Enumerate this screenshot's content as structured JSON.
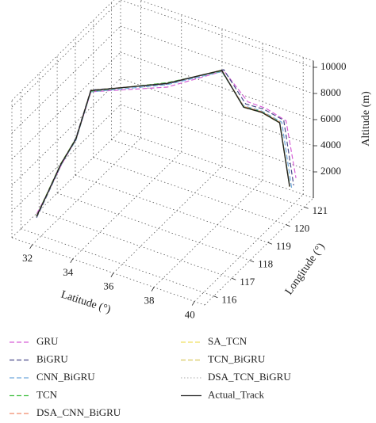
{
  "chart_data": {
    "type": "line3d",
    "x_label": "Latitude (°)",
    "y_label": "Longitude (°)",
    "z_label": "Altitude (m)",
    "xlim": [
      31,
      40.5
    ],
    "ylim": [
      115.5,
      121.5
    ],
    "zlim": [
      0,
      10500
    ],
    "xticks": [
      32,
      34,
      36,
      38,
      40
    ],
    "yticks": [
      116,
      117,
      118,
      119,
      120,
      121
    ],
    "zticks": [
      2000,
      4000,
      6000,
      8000,
      10000
    ],
    "grid": true,
    "series": [
      {
        "name": "GRU",
        "color": "#d65fd6",
        "line_style": "dashed",
        "x": [
          31.6,
          31.8,
          32.0,
          32.2,
          32.4,
          34.9,
          36.9,
          37.9,
          38.7,
          39.6,
          40.0
        ],
        "y": [
          116.2,
          116.6,
          117.1,
          117.7,
          118.3,
          119.7,
          120.6,
          120.8,
          120.9,
          121.0,
          121.1
        ],
        "z": [
          1200,
          2400,
          3900,
          5200,
          8100,
          7900,
          9000,
          6900,
          6700,
          6100,
          1800
        ]
      },
      {
        "name": "BiGRU",
        "color": "#4a4a8a",
        "line_style": "dashed",
        "x": [
          31.5,
          31.7,
          31.9,
          32.1,
          32.3,
          34.8,
          36.8,
          37.7,
          38.5,
          39.4,
          39.8
        ],
        "y": [
          116.3,
          116.7,
          117.2,
          117.8,
          118.4,
          119.8,
          120.7,
          120.9,
          121.0,
          121.1,
          121.2
        ],
        "z": [
          700,
          2100,
          3700,
          5100,
          8050,
          7950,
          8900,
          6500,
          6400,
          5900,
          1000
        ]
      },
      {
        "name": "CNN_BiGRU",
        "color": "#6fa8dc",
        "line_style": "dashed",
        "x": [
          31.5,
          31.7,
          31.9,
          32.1,
          32.3,
          34.8,
          36.7,
          37.6,
          38.4,
          39.3,
          39.7
        ],
        "y": [
          116.3,
          116.7,
          117.2,
          117.8,
          118.4,
          119.8,
          120.7,
          120.9,
          121.0,
          121.1,
          121.2
        ],
        "z": [
          750,
          2150,
          3750,
          4900,
          7900,
          7900,
          8700,
          6300,
          6200,
          5700,
          700
        ]
      },
      {
        "name": "TCN",
        "color": "#3fbf3f",
        "line_style": "dashed",
        "x": [
          31.5,
          31.7,
          31.9,
          32.1,
          32.3,
          34.8,
          36.7,
          37.6,
          38.4,
          39.2,
          39.6
        ],
        "y": [
          116.3,
          116.7,
          117.2,
          117.8,
          118.4,
          119.8,
          120.7,
          120.9,
          121.0,
          121.1,
          121.2
        ],
        "z": [
          850,
          2250,
          3850,
          5050,
          7950,
          8050,
          8750,
          6250,
          6150,
          5650,
          900
        ]
      },
      {
        "name": "DSA_CNN_BiGRU",
        "color": "#f08a6a",
        "line_style": "dashed",
        "x": [
          31.5,
          31.7,
          31.9,
          32.1,
          32.3,
          34.8,
          36.7,
          37.6,
          38.4,
          39.2,
          39.6
        ],
        "y": [
          116.3,
          116.7,
          117.2,
          117.8,
          118.4,
          119.8,
          120.7,
          120.9,
          121.0,
          121.1,
          121.2
        ],
        "z": [
          800,
          2200,
          3800,
          5000,
          8000,
          8000,
          8800,
          6250,
          6150,
          5650,
          850
        ]
      },
      {
        "name": "SA_TCN",
        "color": "#f0e060",
        "line_style": "dashed",
        "x": [
          31.5,
          31.7,
          31.9,
          32.1,
          32.3,
          34.8,
          36.7,
          37.6,
          38.4,
          39.2,
          39.6
        ],
        "y": [
          116.3,
          116.7,
          117.2,
          117.8,
          118.4,
          119.8,
          120.7,
          120.9,
          121.0,
          121.1,
          121.2
        ],
        "z": [
          820,
          2180,
          3820,
          5020,
          8020,
          8000,
          8820,
          6220,
          6120,
          5620,
          820
        ]
      },
      {
        "name": "TCN_BiGRU",
        "color": "#d8c860",
        "line_style": "dashed",
        "x": [
          31.5,
          31.7,
          31.9,
          32.1,
          32.3,
          34.8,
          36.7,
          37.6,
          38.4,
          39.2,
          39.6
        ],
        "y": [
          116.3,
          116.7,
          117.2,
          117.8,
          118.4,
          119.8,
          120.7,
          120.9,
          121.0,
          121.1,
          121.2
        ],
        "z": [
          780,
          2230,
          3780,
          4980,
          7980,
          8010,
          8780,
          6180,
          6080,
          5580,
          780
        ]
      },
      {
        "name": "DSA_TCN_BiGRU",
        "color": "#bbbbbb",
        "line_style": "dotted",
        "x": [
          31.5,
          31.7,
          31.9,
          32.1,
          32.3,
          34.8,
          36.7,
          37.6,
          38.4,
          39.2,
          39.6
        ],
        "y": [
          116.3,
          116.7,
          117.2,
          117.8,
          118.4,
          119.8,
          120.7,
          120.9,
          121.0,
          121.1,
          121.2
        ],
        "z": [
          800,
          2200,
          3800,
          5000,
          8000,
          8000,
          8800,
          6200,
          6100,
          5600,
          800
        ]
      },
      {
        "name": "Actual_Track",
        "color": "#222222",
        "line_style": "solid",
        "x": [
          31.5,
          31.7,
          31.9,
          32.1,
          32.3,
          34.8,
          36.7,
          37.6,
          38.4,
          39.2,
          39.6
        ],
        "y": [
          116.3,
          116.7,
          117.2,
          117.8,
          118.4,
          119.8,
          120.7,
          120.9,
          121.0,
          121.1,
          121.2
        ],
        "z": [
          800,
          2200,
          3800,
          5000,
          8000,
          8000,
          8800,
          6200,
          6100,
          5600,
          800
        ]
      }
    ]
  }
}
